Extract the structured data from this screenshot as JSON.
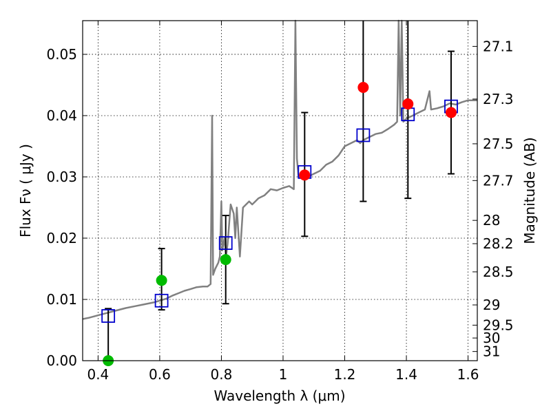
{
  "chart_data": {
    "type": "scatter",
    "xlabel": "Wavelength  λ (μm)",
    "ylabel": "Flux  Fν  ( μJy )",
    "y2label": "Magnitude (AB)",
    "xlim": [
      0.35,
      1.63
    ],
    "ylim": [
      0.0,
      0.0555
    ],
    "x_ticks": [
      {
        "value": 0.4,
        "label": "0.4"
      },
      {
        "value": 0.6,
        "label": "0.6"
      },
      {
        "value": 0.8,
        "label": "0.8"
      },
      {
        "value": 1.0,
        "label": "1"
      },
      {
        "value": 1.2,
        "label": "1.2"
      },
      {
        "value": 1.4,
        "label": "1.4"
      },
      {
        "value": 1.6,
        "label": "1.6"
      }
    ],
    "y_ticks": [
      {
        "value": 0.0,
        "label": "0.00"
      },
      {
        "value": 0.01,
        "label": "0.01"
      },
      {
        "value": 0.02,
        "label": "0.02"
      },
      {
        "value": 0.03,
        "label": "0.03"
      },
      {
        "value": 0.04,
        "label": "0.04"
      },
      {
        "value": 0.05,
        "label": "0.05"
      }
    ],
    "y2_ticks": [
      {
        "flux": 0.0513,
        "label": "27.1"
      },
      {
        "flux": 0.0427,
        "label": "27.3"
      },
      {
        "flux": 0.0354,
        "label": "27.5"
      },
      {
        "flux": 0.0294,
        "label": "27.7"
      },
      {
        "flux": 0.0229,
        "label": "28"
      },
      {
        "flux": 0.0191,
        "label": "28.2"
      },
      {
        "flux": 0.0145,
        "label": "28.5"
      },
      {
        "flux": 0.0091,
        "label": "29"
      },
      {
        "flux": 0.0058,
        "label": "29.5"
      },
      {
        "flux": 0.0037,
        "label": "30"
      },
      {
        "flux": 0.0015,
        "label": "31"
      }
    ],
    "grid": true,
    "colors": {
      "template": "#808080",
      "model_box": "#0000cc",
      "obs_red": "#ff0000",
      "obs_green": "#00bb00",
      "errorbar": "#000000"
    },
    "series": [
      {
        "kind": "template_sed",
        "points": [
          [
            0.35,
            0.0068
          ],
          [
            0.37,
            0.007
          ],
          [
            0.4,
            0.0074
          ],
          [
            0.43,
            0.0078
          ],
          [
            0.46,
            0.0082
          ],
          [
            0.49,
            0.0086
          ],
          [
            0.52,
            0.0089
          ],
          [
            0.55,
            0.0092
          ],
          [
            0.58,
            0.0095
          ],
          [
            0.6,
            0.0098
          ],
          [
            0.62,
            0.0101
          ],
          [
            0.64,
            0.0106
          ],
          [
            0.66,
            0.011
          ],
          [
            0.68,
            0.0114
          ],
          [
            0.7,
            0.0117
          ],
          [
            0.72,
            0.012
          ],
          [
            0.74,
            0.0121
          ],
          [
            0.755,
            0.0121
          ],
          [
            0.765,
            0.0125
          ],
          [
            0.77,
            0.04
          ],
          [
            0.773,
            0.014
          ],
          [
            0.78,
            0.015
          ],
          [
            0.79,
            0.016
          ],
          [
            0.795,
            0.017
          ],
          [
            0.8,
            0.026
          ],
          [
            0.803,
            0.018
          ],
          [
            0.81,
            0.02
          ],
          [
            0.815,
            0.017
          ],
          [
            0.82,
            0.019
          ],
          [
            0.83,
            0.0255
          ],
          [
            0.84,
            0.024
          ],
          [
            0.845,
            0.02
          ],
          [
            0.85,
            0.025
          ],
          [
            0.86,
            0.017
          ],
          [
            0.87,
            0.025
          ],
          [
            0.88,
            0.0255
          ],
          [
            0.89,
            0.026
          ],
          [
            0.9,
            0.0255
          ],
          [
            0.91,
            0.026
          ],
          [
            0.92,
            0.0265
          ],
          [
            0.94,
            0.027
          ],
          [
            0.96,
            0.028
          ],
          [
            0.98,
            0.0278
          ],
          [
            1.0,
            0.0282
          ],
          [
            1.02,
            0.0285
          ],
          [
            1.035,
            0.028
          ],
          [
            1.04,
            0.056
          ],
          [
            1.045,
            0.033
          ],
          [
            1.05,
            0.03
          ],
          [
            1.06,
            0.03
          ],
          [
            1.07,
            0.0295
          ],
          [
            1.08,
            0.03
          ],
          [
            1.1,
            0.0305
          ],
          [
            1.12,
            0.031
          ],
          [
            1.14,
            0.032
          ],
          [
            1.16,
            0.0325
          ],
          [
            1.18,
            0.0335
          ],
          [
            1.2,
            0.035
          ],
          [
            1.22,
            0.0355
          ],
          [
            1.24,
            0.036
          ],
          [
            1.25,
            0.0355
          ],
          [
            1.26,
            0.036
          ],
          [
            1.28,
            0.0365
          ],
          [
            1.3,
            0.037
          ],
          [
            1.32,
            0.0372
          ],
          [
            1.34,
            0.0378
          ],
          [
            1.36,
            0.0385
          ],
          [
            1.37,
            0.039
          ],
          [
            1.375,
            0.056
          ],
          [
            1.38,
            0.04
          ],
          [
            1.385,
            0.056
          ],
          [
            1.39,
            0.039
          ],
          [
            1.4,
            0.0395
          ],
          [
            1.42,
            0.04
          ],
          [
            1.44,
            0.0405
          ],
          [
            1.46,
            0.041
          ],
          [
            1.475,
            0.044
          ],
          [
            1.48,
            0.041
          ],
          [
            1.5,
            0.0412
          ],
          [
            1.52,
            0.0415
          ],
          [
            1.54,
            0.042
          ],
          [
            1.56,
            0.0418
          ],
          [
            1.58,
            0.0422
          ],
          [
            1.6,
            0.0425
          ],
          [
            1.63,
            0.0425
          ]
        ]
      },
      {
        "kind": "model_photometry",
        "points": [
          [
            0.433,
            0.0073
          ],
          [
            0.606,
            0.0098
          ],
          [
            0.814,
            0.0192
          ],
          [
            1.07,
            0.0308
          ],
          [
            1.26,
            0.0368
          ],
          [
            1.405,
            0.0402
          ],
          [
            1.545,
            0.0415
          ]
        ]
      },
      {
        "kind": "observed_photometry",
        "points": [
          {
            "x": 0.433,
            "y": 0.0,
            "yerr_low": 0.0,
            "yerr_high": 0.0085,
            "color": "green"
          },
          {
            "x": 0.606,
            "y": 0.0131,
            "yerr_low": 0.0083,
            "yerr_high": 0.0183,
            "color": "green"
          },
          {
            "x": 0.814,
            "y": 0.0165,
            "yerr_low": 0.0093,
            "yerr_high": 0.0237,
            "color": "green"
          },
          {
            "x": 1.07,
            "y": 0.0303,
            "yerr_low": 0.0203,
            "yerr_high": 0.0405,
            "color": "red"
          },
          {
            "x": 1.26,
            "y": 0.0446,
            "yerr_low": 0.026,
            "yerr_high": 0.0555,
            "color": "red"
          },
          {
            "x": 1.405,
            "y": 0.0419,
            "yerr_low": 0.0265,
            "yerr_high": 0.0555,
            "color": "red"
          },
          {
            "x": 1.545,
            "y": 0.0405,
            "yerr_low": 0.0305,
            "yerr_high": 0.0505,
            "color": "red"
          }
        ]
      }
    ]
  }
}
